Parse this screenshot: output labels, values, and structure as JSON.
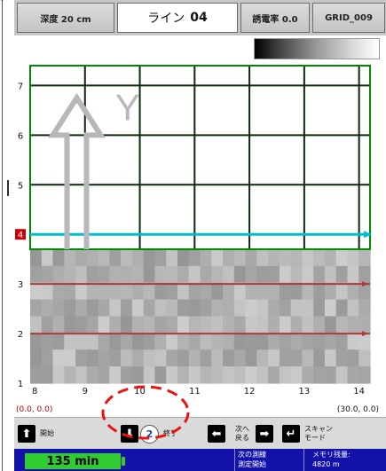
{
  "header": {
    "depth": "深度 20 cm",
    "line_label": "ライン",
    "line_number": "04",
    "permittivity": "誘電率 0.0",
    "grid": "GRID_009"
  },
  "chart_data": {
    "type": "heatmap",
    "x_ticks": [
      "8",
      "9",
      "10",
      "11",
      "12",
      "13",
      "14"
    ],
    "y_ticks": [
      "1",
      "2",
      "3",
      "4",
      "5",
      "6",
      "7"
    ],
    "xlim": [
      8,
      14.2
    ],
    "ylim": [
      1,
      7.4
    ],
    "grid_lines_x": [
      8,
      9,
      10,
      11,
      12,
      13,
      14
    ],
    "grid_lines_y": [
      5,
      6,
      7
    ],
    "current_line_y": 4,
    "scanned_lines_y": [
      2,
      3
    ],
    "scanned_region_y": [
      1,
      3.7
    ],
    "arrow_label": "Y",
    "colors": {
      "grid": "#008a00",
      "current_line": "#00bcd4",
      "scanned_line": "#b03a3a",
      "current_marker": "#cc0000"
    }
  },
  "coords": {
    "start": "(0.0, 0.0)",
    "end": "(30.0, 0.0)"
  },
  "controls": {
    "start": "開始",
    "end": "終了",
    "next_back": "次へ\n戻る",
    "scan_mode": "スキャン\nモード",
    "badge": "2"
  },
  "status": {
    "timer": "135 min",
    "next_line_line1": "次の測線",
    "next_line_line2": "測定開始",
    "memory_line1": "メモリ残量:",
    "memory_line2": "4820 m"
  }
}
